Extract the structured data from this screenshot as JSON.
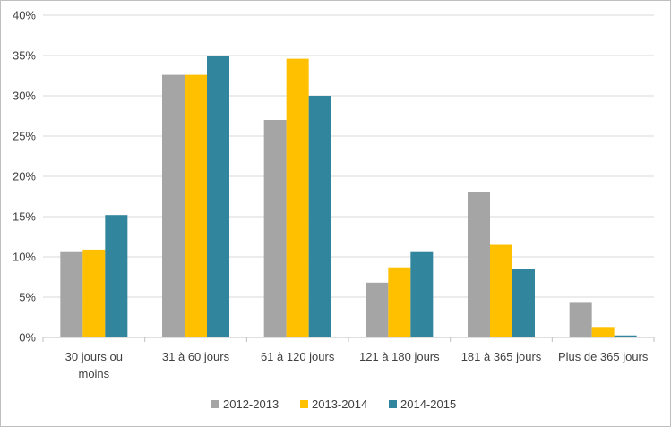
{
  "chart_data": {
    "type": "bar",
    "title": "",
    "xlabel": "",
    "ylabel": "",
    "categories": [
      [
        "30 jours ou",
        "moins"
      ],
      [
        "31 à 60 jours"
      ],
      [
        "61 à 120 jours"
      ],
      [
        "121 à 180 jours"
      ],
      [
        "181 à 365 jours"
      ],
      [
        "Plus de 365 jours"
      ]
    ],
    "series": [
      {
        "name": "2012-2013",
        "color": "#a5a5a5",
        "values": [
          10.7,
          32.6,
          27.0,
          6.8,
          18.1,
          4.4
        ]
      },
      {
        "name": "2013-2014",
        "color": "#ffc000",
        "values": [
          10.9,
          32.6,
          34.6,
          8.7,
          11.5,
          1.3
        ]
      },
      {
        "name": "2014-2015",
        "color": "#31859c",
        "values": [
          15.2,
          35.0,
          30.0,
          10.7,
          8.5,
          0.25
        ]
      }
    ],
    "ylim": [
      0,
      40
    ],
    "yticks": [
      0,
      5,
      10,
      15,
      20,
      25,
      30,
      35,
      40
    ],
    "ytick_format": "%",
    "grid": true,
    "legend_position": "bottom"
  }
}
